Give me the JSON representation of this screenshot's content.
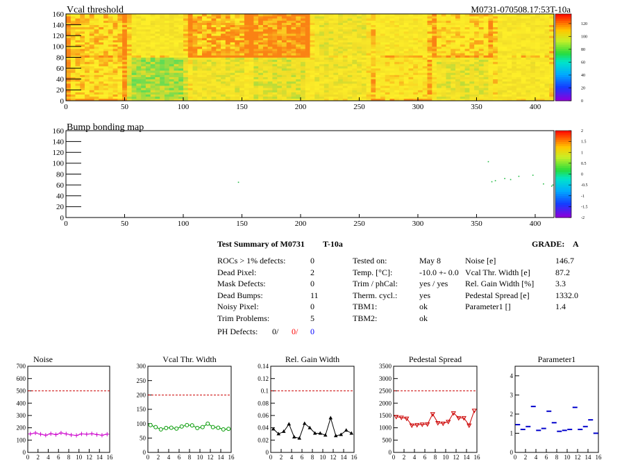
{
  "top_panel": {
    "title": "Vcal threshold",
    "module_id": "M0731-070508.17:53T-10a"
  },
  "bump_panel": {
    "title": "Bump bonding map"
  },
  "summary": {
    "title": "Test Summary of M0731",
    "temp_label": "T-10a",
    "grade_label": "GRADE:",
    "grade": "A",
    "defects": [
      {
        "label": "ROCs > 1% defects:",
        "value": "0"
      },
      {
        "label": "Dead Pixel:",
        "value": "2"
      },
      {
        "label": "Mask Defects:",
        "value": "0"
      },
      {
        "label": "Dead Bumps:",
        "value": "11"
      },
      {
        "label": "Noisy Pixel:",
        "value": "0"
      },
      {
        "label": "Trim Problems:",
        "value": "5"
      }
    ],
    "ph_defects": {
      "label": "PH Defects:",
      "v1": "0/",
      "v2": "0/",
      "v3": "0"
    },
    "conditions": [
      {
        "label": "Tested on:",
        "value": "May 8"
      },
      {
        "label": "Temp. [°C]:",
        "value": "-10.0 +- 0.0"
      },
      {
        "label": "Trim / phCal:",
        "value": "yes / yes"
      },
      {
        "label": "Therm. cycl.:",
        "value": "yes"
      },
      {
        "label": "TBM1:",
        "value": "ok"
      },
      {
        "label": "TBM2:",
        "value": "ok"
      }
    ],
    "results": [
      {
        "label": "Noise [e]",
        "value": "146.7"
      },
      {
        "label": "Vcal Thr. Width [e]",
        "value": "87.2"
      },
      {
        "label": "Rel. Gain Width [%]",
        "value": "3.3"
      },
      {
        "label": "Pedestal Spread [e]",
        "value": "1332.0"
      },
      {
        "label": "Parameter1 []",
        "value": "1.4"
      }
    ]
  },
  "chart_data": [
    {
      "type": "heatmap",
      "title": "Vcal threshold",
      "xlim": [
        0,
        416
      ],
      "ylim": [
        0,
        160
      ],
      "x_ticks": [
        "0",
        "50",
        "100",
        "150",
        "200",
        "250",
        "300",
        "350",
        "400"
      ],
      "y_ticks": [
        "0",
        "20",
        "40",
        "60",
        "80",
        "100",
        "120",
        "140",
        "160"
      ],
      "colorbar_ticks": [
        "0",
        "20",
        "40",
        "60",
        "80",
        "100",
        "120"
      ],
      "roc_mean_values": [
        [
          110,
          70,
          90,
          85,
          92,
          105,
          88,
          96
        ],
        [
          112,
          96,
          118,
          125,
          90,
          100,
          110,
          98
        ]
      ]
    },
    {
      "type": "scatter",
      "title": "Bump bonding map",
      "xlim": [
        0,
        416
      ],
      "ylim": [
        0,
        160
      ],
      "x_ticks": [
        "0",
        "50",
        "100",
        "150",
        "200",
        "250",
        "300",
        "350",
        "400"
      ],
      "y_ticks": [
        "0",
        "20",
        "40",
        "60",
        "80",
        "100",
        "120",
        "140",
        "160"
      ],
      "colorbar_ticks": [
        "2",
        "1.5",
        "1",
        "0.5",
        "0",
        "-0.5",
        "-1",
        "-1.5",
        "-2"
      ],
      "points": [
        [
          147,
          65
        ],
        [
          360,
          103
        ],
        [
          363,
          66
        ],
        [
          366,
          68
        ],
        [
          374,
          72
        ],
        [
          379,
          70
        ],
        [
          386,
          76
        ],
        [
          398,
          78
        ],
        [
          407,
          62
        ],
        [
          414,
          58
        ],
        [
          415,
          60
        ]
      ]
    },
    {
      "type": "line",
      "title": "Noise",
      "x": [
        0,
        1,
        2,
        3,
        4,
        5,
        6,
        7,
        8,
        9,
        10,
        11,
        12,
        13,
        14,
        15
      ],
      "values": [
        150,
        158,
        148,
        140,
        152,
        145,
        158,
        150,
        142,
        138,
        150,
        148,
        152,
        145,
        140,
        148
      ],
      "xlim": [
        0,
        16
      ],
      "ylim": [
        0,
        700
      ],
      "y_ticks": [
        "0",
        "100",
        "200",
        "300",
        "400",
        "500",
        "600",
        "700"
      ],
      "x_ticks": [
        "0",
        "2",
        "4",
        "6",
        "8",
        "10",
        "12",
        "14",
        "16"
      ],
      "threshold": 500,
      "color": "#cc00cc",
      "marker": "plus"
    },
    {
      "type": "line",
      "title": "Vcal Thr. Width",
      "x": [
        0,
        1,
        2,
        3,
        4,
        5,
        6,
        7,
        8,
        9,
        10,
        11,
        12,
        13,
        14,
        15
      ],
      "values": [
        95,
        88,
        80,
        85,
        86,
        83,
        90,
        95,
        94,
        85,
        88,
        100,
        88,
        86,
        80,
        82
      ],
      "xlim": [
        0,
        16
      ],
      "ylim": [
        0,
        300
      ],
      "y_ticks": [
        "0",
        "50",
        "100",
        "150",
        "200",
        "250",
        "300"
      ],
      "x_ticks": [
        "0",
        "2",
        "4",
        "6",
        "8",
        "10",
        "12",
        "14",
        "16"
      ],
      "threshold": 200,
      "color": "#009900",
      "marker": "circle"
    },
    {
      "type": "line",
      "title": "Rel. Gain Width",
      "x": [
        0,
        1,
        2,
        3,
        4,
        5,
        6,
        7,
        8,
        9,
        10,
        11,
        12,
        13,
        14,
        15
      ],
      "values": [
        0.038,
        0.03,
        0.034,
        0.046,
        0.025,
        0.023,
        0.047,
        0.04,
        0.031,
        0.031,
        0.028,
        0.056,
        0.027,
        0.029,
        0.036,
        0.031
      ],
      "xlim": [
        0,
        16
      ],
      "ylim": [
        0,
        0.14
      ],
      "y_ticks": [
        "0",
        "0.02",
        "0.04",
        "0.06",
        "0.08",
        "0.1",
        "0.12",
        "0.14"
      ],
      "x_ticks": [
        "0",
        "2",
        "4",
        "6",
        "8",
        "10",
        "12",
        "14",
        "16"
      ],
      "threshold": 0.1,
      "color": "#000000",
      "marker": "triangle"
    },
    {
      "type": "line",
      "title": "Pedestal Spread",
      "x": [
        0,
        1,
        2,
        3,
        4,
        5,
        6,
        7,
        8,
        9,
        10,
        11,
        12,
        13,
        14,
        15
      ],
      "values": [
        1450,
        1420,
        1380,
        1100,
        1120,
        1140,
        1150,
        1560,
        1200,
        1180,
        1250,
        1600,
        1400,
        1400,
        1100,
        1700
      ],
      "xlim": [
        0,
        16
      ],
      "ylim": [
        0,
        3500
      ],
      "y_ticks": [
        "0",
        "500",
        "1000",
        "1500",
        "2000",
        "2500",
        "3000",
        "3500"
      ],
      "x_ticks": [
        "0",
        "2",
        "4",
        "6",
        "8",
        "10",
        "12",
        "14",
        "16"
      ],
      "threshold": 2500,
      "color": "#cc0000",
      "marker": "triangle-down"
    },
    {
      "type": "scatter",
      "title": "Parameter1",
      "x": [
        0,
        1,
        2,
        3,
        4,
        5,
        6,
        7,
        8,
        9,
        10,
        11,
        12,
        13,
        14,
        15
      ],
      "values": [
        1.45,
        1.2,
        1.35,
        2.4,
        1.15,
        1.25,
        2.15,
        1.55,
        1.1,
        1.15,
        1.2,
        2.35,
        1.2,
        1.35,
        1.7,
        1.0
      ],
      "xlim": [
        0,
        16
      ],
      "ylim": [
        0,
        4.5
      ],
      "y_ticks": [
        "0",
        "1",
        "2",
        "3",
        "4"
      ],
      "x_ticks": [
        "0",
        "2",
        "4",
        "6",
        "8",
        "10",
        "12",
        "14",
        "16"
      ],
      "color": "#0000cc",
      "marker": "hbar"
    }
  ]
}
